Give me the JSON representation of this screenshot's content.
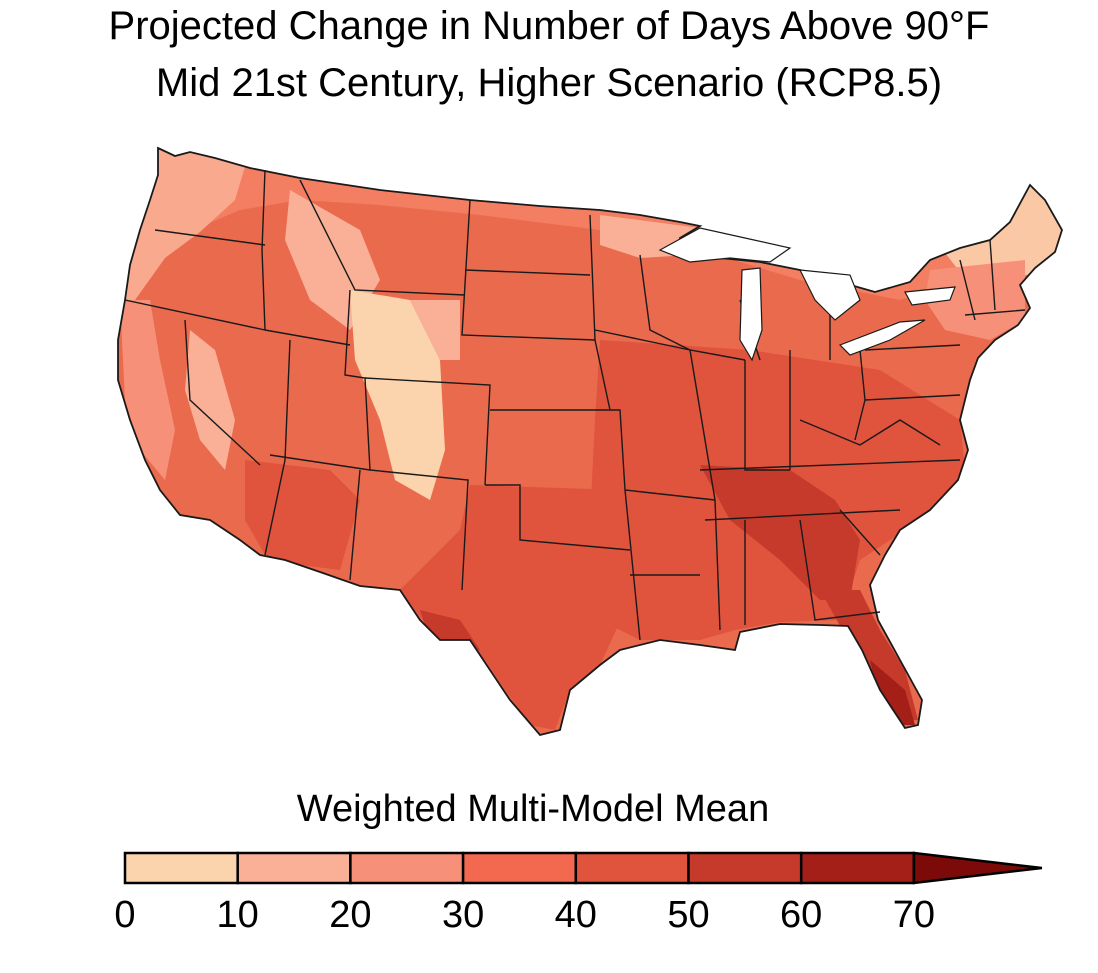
{
  "title": {
    "line1": "Projected Change in Number of Days Above 90°F",
    "line2": "Mid 21st Century, Higher Scenario (RCP8.5)"
  },
  "map": {
    "region": "Contiguous United States",
    "state_boundaries": true,
    "base_color": "#ea6a4e"
  },
  "legend": {
    "title": "Weighted Multi-Model Mean",
    "extends": "max",
    "ticks": [
      "0",
      "10",
      "20",
      "30",
      "40",
      "50",
      "60",
      "70"
    ],
    "bins": [
      {
        "from": 0,
        "to": 10,
        "color": "#fbd3ac"
      },
      {
        "from": 10,
        "to": 20,
        "color": "#f9b097"
      },
      {
        "from": 20,
        "to": 30,
        "color": "#f79079"
      },
      {
        "from": 30,
        "to": 40,
        "color": "#f2694f"
      },
      {
        "from": 40,
        "to": 50,
        "color": "#e0533d"
      },
      {
        "from": 50,
        "to": 60,
        "color": "#c63a2c"
      },
      {
        "from": 60,
        "to": 70,
        "color": "#a41f18"
      },
      {
        "from": 70,
        "to": null,
        "color": "#7c0a08"
      }
    ]
  }
}
